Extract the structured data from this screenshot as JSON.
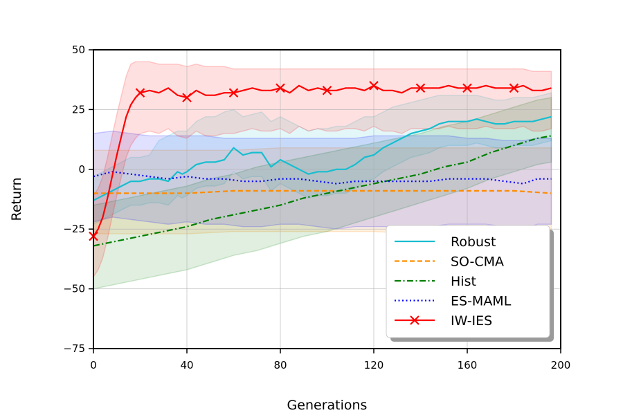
{
  "chart_data": {
    "type": "line",
    "title": "",
    "xlabel": "Generations",
    "ylabel": "Return",
    "xlim": [
      0,
      200
    ],
    "ylim": [
      -75,
      50
    ],
    "xticks": [
      0,
      40,
      80,
      120,
      160,
      200
    ],
    "yticks": [
      -75,
      -50,
      -25,
      0,
      25,
      50
    ],
    "xtick_labels": [
      "0",
      "40",
      "80",
      "120",
      "160",
      "200"
    ],
    "ytick_labels": [
      "−75",
      "−50",
      "−25",
      "0",
      "25",
      "50"
    ],
    "grid": true,
    "legend_position": "lower-right",
    "series": [
      {
        "name": "Robust",
        "color": "#17becf",
        "line_style": "solid",
        "marker": "none",
        "x": [
          0,
          4,
          8,
          12,
          16,
          20,
          24,
          28,
          32,
          36,
          38,
          40,
          44,
          48,
          52,
          56,
          60,
          64,
          68,
          72,
          76,
          80,
          84,
          88,
          92,
          96,
          100,
          104,
          108,
          112,
          116,
          120,
          124,
          128,
          132,
          136,
          140,
          144,
          148,
          152,
          156,
          160,
          164,
          168,
          172,
          176,
          180,
          184,
          188,
          192,
          196
        ],
        "values": [
          -13,
          -11,
          -9,
          -7,
          -5,
          -5,
          -4,
          -4,
          -5,
          -1,
          -2,
          -1,
          2,
          3,
          3,
          4,
          9,
          6,
          7,
          7,
          1,
          4,
          2,
          0,
          -2,
          -1,
          -1,
          0,
          0,
          2,
          5,
          6,
          9,
          11,
          13,
          15,
          16,
          17,
          19,
          20,
          20,
          20,
          21,
          20,
          19,
          19,
          20,
          20,
          20,
          21,
          22
        ],
        "lower": [
          -23,
          -21,
          -19,
          -17,
          -15,
          -15,
          -14,
          -14,
          -15,
          -11,
          -12,
          -11,
          -8,
          -7,
          -7,
          -6,
          -1,
          -4,
          -3,
          -3,
          -9,
          -6,
          -8,
          -10,
          -12,
          -11,
          -11,
          -10,
          -10,
          -8,
          -5,
          -4,
          -1,
          1,
          3,
          5,
          6,
          7,
          9,
          10,
          10,
          10,
          11,
          10,
          9,
          9,
          10,
          10,
          10,
          11,
          12
        ],
        "upper": [
          -3,
          -1,
          1,
          3,
          5,
          5,
          6,
          12,
          14,
          16,
          16,
          16,
          20,
          22,
          22,
          24,
          25,
          22,
          23,
          24,
          20,
          22,
          20,
          18,
          16,
          17,
          17,
          18,
          18,
          20,
          22,
          22,
          24,
          26,
          27,
          28,
          29,
          30,
          31,
          31,
          31,
          31,
          31,
          30,
          29,
          29,
          30,
          30,
          30,
          31,
          32
        ]
      },
      {
        "name": "SO-CMA",
        "color": "#ff8c00",
        "line_style": "dashed",
        "marker": "none",
        "x": [
          0,
          20,
          40,
          60,
          80,
          100,
          120,
          140,
          160,
          180,
          196
        ],
        "values": [
          -10,
          -10,
          -10,
          -9,
          -9,
          -9,
          -9,
          -9,
          -9,
          -9,
          -10
        ],
        "lower": [
          -27,
          -27,
          -27,
          -26,
          -26,
          -26,
          -26,
          -27,
          -27,
          -27,
          -28
        ],
        "upper": [
          8,
          8,
          8,
          8,
          9,
          9,
          9,
          9,
          9,
          9,
          9
        ]
      },
      {
        "name": "Hist",
        "color": "#007f00",
        "line_style": "dashdot",
        "marker": "none",
        "x": [
          0,
          10,
          20,
          30,
          40,
          50,
          60,
          70,
          80,
          90,
          100,
          110,
          120,
          130,
          140,
          150,
          160,
          170,
          180,
          190,
          196
        ],
        "values": [
          -32,
          -30,
          -28,
          -26,
          -24,
          -21,
          -19,
          -17,
          -15,
          -12,
          -10,
          -8,
          -6,
          -4,
          -2,
          1,
          3,
          7,
          10,
          13,
          14
        ],
        "lower": [
          -50,
          -48,
          -46,
          -44,
          -42,
          -39,
          -36,
          -34,
          -31,
          -28,
          -26,
          -23,
          -20,
          -17,
          -14,
          -11,
          -8,
          -4,
          -1,
          2,
          3
        ],
        "upper": [
          -15,
          -13,
          -11,
          -9,
          -7,
          -4,
          -2,
          1,
          3,
          5,
          7,
          9,
          11,
          13,
          15,
          18,
          20,
          23,
          26,
          29,
          30
        ]
      },
      {
        "name": "ES-MAML",
        "color": "#0000ff",
        "line_style": "dotted",
        "marker": "none",
        "x": [
          0,
          8,
          16,
          24,
          32,
          40,
          48,
          56,
          64,
          72,
          80,
          88,
          96,
          104,
          112,
          120,
          128,
          136,
          144,
          152,
          160,
          168,
          176,
          184,
          190,
          196
        ],
        "values": [
          -3,
          -1,
          -2,
          -3,
          -4,
          -3,
          -4,
          -4,
          -5,
          -5,
          -4,
          -4,
          -5,
          -6,
          -5,
          -5,
          -5,
          -5,
          -5,
          -4,
          -4,
          -4,
          -5,
          -6,
          -4,
          -4
        ],
        "lower": [
          -22,
          -20,
          -21,
          -22,
          -23,
          -22,
          -23,
          -23,
          -24,
          -24,
          -23,
          -23,
          -24,
          -25,
          -24,
          -24,
          -24,
          -24,
          -24,
          -23,
          -23,
          -23,
          -24,
          -25,
          -23,
          -23
        ],
        "upper": [
          15,
          16,
          15,
          14,
          14,
          14,
          14,
          13,
          13,
          13,
          13,
          13,
          13,
          13,
          13,
          14,
          14,
          14,
          14,
          14,
          13,
          13,
          12,
          12,
          13,
          13
        ]
      },
      {
        "name": "IW-IES",
        "color": "#ff0000",
        "line_style": "solid",
        "marker": "x",
        "x": [
          0,
          2,
          4,
          6,
          8,
          10,
          12,
          14,
          16,
          18,
          20,
          24,
          28,
          32,
          36,
          40,
          44,
          48,
          52,
          56,
          60,
          64,
          68,
          72,
          76,
          80,
          84,
          88,
          92,
          96,
          100,
          104,
          108,
          112,
          116,
          120,
          124,
          128,
          132,
          136,
          140,
          144,
          148,
          152,
          156,
          160,
          164,
          168,
          172,
          176,
          180,
          184,
          188,
          192,
          196
        ],
        "values": [
          -28,
          -25,
          -20,
          -12,
          -3,
          6,
          14,
          22,
          27,
          30,
          32,
          33,
          32,
          34,
          31,
          30,
          33,
          31,
          31,
          32,
          32,
          33,
          34,
          33,
          33,
          34,
          32,
          35,
          33,
          34,
          33,
          33,
          34,
          34,
          33,
          35,
          33,
          33,
          32,
          34,
          34,
          34,
          34,
          35,
          34,
          34,
          34,
          35,
          34,
          34,
          34,
          35,
          33,
          33,
          34
        ],
        "lower": [
          -45,
          -42,
          -37,
          -29,
          -20,
          -11,
          -3,
          5,
          10,
          13,
          15,
          16,
          15,
          17,
          14,
          13,
          16,
          14,
          14,
          15,
          15,
          16,
          17,
          16,
          16,
          17,
          15,
          18,
          16,
          17,
          16,
          16,
          17,
          17,
          16,
          18,
          16,
          16,
          15,
          17,
          17,
          17,
          17,
          18,
          17,
          17,
          17,
          18,
          17,
          17,
          17,
          18,
          16,
          16,
          17
        ],
        "upper": [
          -11,
          -8,
          -3,
          5,
          14,
          23,
          31,
          39,
          44,
          45,
          45,
          45,
          44,
          44,
          44,
          43,
          44,
          43,
          43,
          43,
          42,
          42,
          42,
          42,
          42,
          42,
          42,
          42,
          42,
          42,
          42,
          42,
          42,
          42,
          42,
          42,
          42,
          42,
          42,
          42,
          42,
          42,
          42,
          42,
          42,
          42,
          42,
          42,
          42,
          42,
          42,
          42,
          41,
          41,
          41
        ],
        "marker_x": [
          0,
          20,
          40,
          60,
          80,
          100,
          120,
          140,
          160,
          180
        ],
        "marker_values": [
          -28,
          32,
          30,
          32,
          34,
          33,
          35,
          34,
          34,
          34
        ]
      }
    ]
  }
}
